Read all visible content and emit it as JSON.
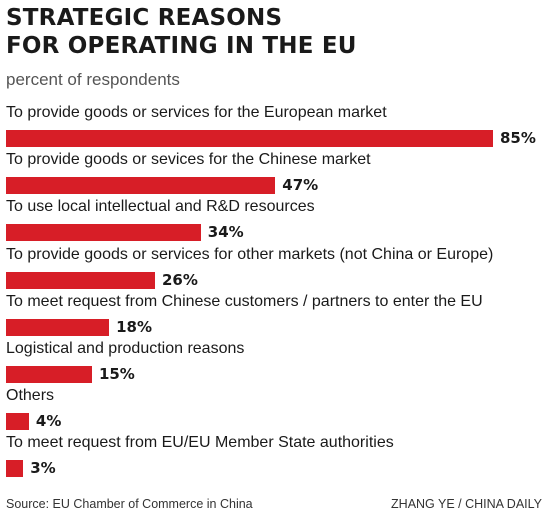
{
  "chart_data": {
    "type": "bar",
    "orientation": "horizontal",
    "title_lines": [
      "STRATEGIC REASONS",
      "FOR OPERATING IN THE EU"
    ],
    "subtitle": "percent of respondents",
    "categories": [
      "To provide goods or services for the European market",
      "To provide goods or sevices for the Chinese market",
      "To use local intellectual and R&D resources",
      "To provide goods or services for other markets (not China or Europe)",
      "To meet request from Chinese customers / partners to enter the EU",
      "Logistical and production reasons",
      "Others",
      "To meet request from EU/EU Member State authorities"
    ],
    "values": [
      85,
      47,
      34,
      26,
      18,
      15,
      4,
      3
    ],
    "value_labels": [
      "85%",
      "47%",
      "34%",
      "26%",
      "18%",
      "15%",
      "4%",
      "3%"
    ],
    "bar_color": "#d71e27",
    "xlim": [
      0,
      100
    ],
    "axes_shown": false,
    "grid": false
  },
  "footer": {
    "source": "Source: EU Chamber of Commerce in China",
    "credit": "ZHANG YE / CHINA DAILY"
  }
}
